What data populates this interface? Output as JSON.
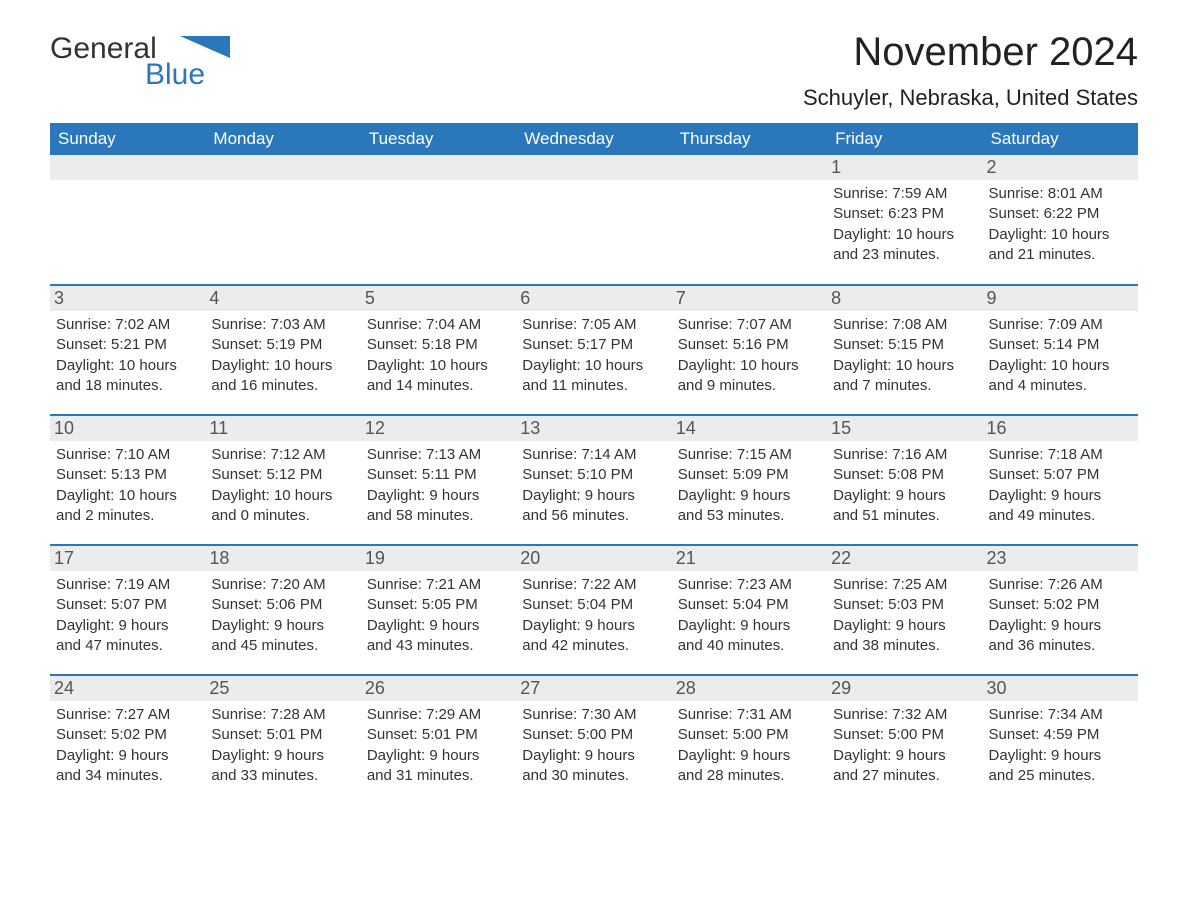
{
  "brand": {
    "part1": "General",
    "part2": "Blue",
    "color_dark": "#333333",
    "color_brand": "#2b77bb"
  },
  "title": "November 2024",
  "location": "Schuyler, Nebraska, United States",
  "colors": {
    "header_bg": "#2b77bb",
    "header_fg": "#ffffff",
    "daynum_bg": "#ececec",
    "text": "#333333",
    "row_border": "#2b77bb"
  },
  "fonts": {
    "title_size": 40,
    "location_size": 22,
    "dayhead_size": 17,
    "daynum_size": 18,
    "body_size": 15
  },
  "day_headers": [
    "Sunday",
    "Monday",
    "Tuesday",
    "Wednesday",
    "Thursday",
    "Friday",
    "Saturday"
  ],
  "weeks": [
    [
      null,
      null,
      null,
      null,
      null,
      {
        "n": "1",
        "sunrise": "Sunrise: 7:59 AM",
        "sunset": "Sunset: 6:23 PM",
        "daylight1": "Daylight: 10 hours",
        "daylight2": "and 23 minutes."
      },
      {
        "n": "2",
        "sunrise": "Sunrise: 8:01 AM",
        "sunset": "Sunset: 6:22 PM",
        "daylight1": "Daylight: 10 hours",
        "daylight2": "and 21 minutes."
      }
    ],
    [
      {
        "n": "3",
        "sunrise": "Sunrise: 7:02 AM",
        "sunset": "Sunset: 5:21 PM",
        "daylight1": "Daylight: 10 hours",
        "daylight2": "and 18 minutes."
      },
      {
        "n": "4",
        "sunrise": "Sunrise: 7:03 AM",
        "sunset": "Sunset: 5:19 PM",
        "daylight1": "Daylight: 10 hours",
        "daylight2": "and 16 minutes."
      },
      {
        "n": "5",
        "sunrise": "Sunrise: 7:04 AM",
        "sunset": "Sunset: 5:18 PM",
        "daylight1": "Daylight: 10 hours",
        "daylight2": "and 14 minutes."
      },
      {
        "n": "6",
        "sunrise": "Sunrise: 7:05 AM",
        "sunset": "Sunset: 5:17 PM",
        "daylight1": "Daylight: 10 hours",
        "daylight2": "and 11 minutes."
      },
      {
        "n": "7",
        "sunrise": "Sunrise: 7:07 AM",
        "sunset": "Sunset: 5:16 PM",
        "daylight1": "Daylight: 10 hours",
        "daylight2": "and 9 minutes."
      },
      {
        "n": "8",
        "sunrise": "Sunrise: 7:08 AM",
        "sunset": "Sunset: 5:15 PM",
        "daylight1": "Daylight: 10 hours",
        "daylight2": "and 7 minutes."
      },
      {
        "n": "9",
        "sunrise": "Sunrise: 7:09 AM",
        "sunset": "Sunset: 5:14 PM",
        "daylight1": "Daylight: 10 hours",
        "daylight2": "and 4 minutes."
      }
    ],
    [
      {
        "n": "10",
        "sunrise": "Sunrise: 7:10 AM",
        "sunset": "Sunset: 5:13 PM",
        "daylight1": "Daylight: 10 hours",
        "daylight2": "and 2 minutes."
      },
      {
        "n": "11",
        "sunrise": "Sunrise: 7:12 AM",
        "sunset": "Sunset: 5:12 PM",
        "daylight1": "Daylight: 10 hours",
        "daylight2": "and 0 minutes."
      },
      {
        "n": "12",
        "sunrise": "Sunrise: 7:13 AM",
        "sunset": "Sunset: 5:11 PM",
        "daylight1": "Daylight: 9 hours",
        "daylight2": "and 58 minutes."
      },
      {
        "n": "13",
        "sunrise": "Sunrise: 7:14 AM",
        "sunset": "Sunset: 5:10 PM",
        "daylight1": "Daylight: 9 hours",
        "daylight2": "and 56 minutes."
      },
      {
        "n": "14",
        "sunrise": "Sunrise: 7:15 AM",
        "sunset": "Sunset: 5:09 PM",
        "daylight1": "Daylight: 9 hours",
        "daylight2": "and 53 minutes."
      },
      {
        "n": "15",
        "sunrise": "Sunrise: 7:16 AM",
        "sunset": "Sunset: 5:08 PM",
        "daylight1": "Daylight: 9 hours",
        "daylight2": "and 51 minutes."
      },
      {
        "n": "16",
        "sunrise": "Sunrise: 7:18 AM",
        "sunset": "Sunset: 5:07 PM",
        "daylight1": "Daylight: 9 hours",
        "daylight2": "and 49 minutes."
      }
    ],
    [
      {
        "n": "17",
        "sunrise": "Sunrise: 7:19 AM",
        "sunset": "Sunset: 5:07 PM",
        "daylight1": "Daylight: 9 hours",
        "daylight2": "and 47 minutes."
      },
      {
        "n": "18",
        "sunrise": "Sunrise: 7:20 AM",
        "sunset": "Sunset: 5:06 PM",
        "daylight1": "Daylight: 9 hours",
        "daylight2": "and 45 minutes."
      },
      {
        "n": "19",
        "sunrise": "Sunrise: 7:21 AM",
        "sunset": "Sunset: 5:05 PM",
        "daylight1": "Daylight: 9 hours",
        "daylight2": "and 43 minutes."
      },
      {
        "n": "20",
        "sunrise": "Sunrise: 7:22 AM",
        "sunset": "Sunset: 5:04 PM",
        "daylight1": "Daylight: 9 hours",
        "daylight2": "and 42 minutes."
      },
      {
        "n": "21",
        "sunrise": "Sunrise: 7:23 AM",
        "sunset": "Sunset: 5:04 PM",
        "daylight1": "Daylight: 9 hours",
        "daylight2": "and 40 minutes."
      },
      {
        "n": "22",
        "sunrise": "Sunrise: 7:25 AM",
        "sunset": "Sunset: 5:03 PM",
        "daylight1": "Daylight: 9 hours",
        "daylight2": "and 38 minutes."
      },
      {
        "n": "23",
        "sunrise": "Sunrise: 7:26 AM",
        "sunset": "Sunset: 5:02 PM",
        "daylight1": "Daylight: 9 hours",
        "daylight2": "and 36 minutes."
      }
    ],
    [
      {
        "n": "24",
        "sunrise": "Sunrise: 7:27 AM",
        "sunset": "Sunset: 5:02 PM",
        "daylight1": "Daylight: 9 hours",
        "daylight2": "and 34 minutes."
      },
      {
        "n": "25",
        "sunrise": "Sunrise: 7:28 AM",
        "sunset": "Sunset: 5:01 PM",
        "daylight1": "Daylight: 9 hours",
        "daylight2": "and 33 minutes."
      },
      {
        "n": "26",
        "sunrise": "Sunrise: 7:29 AM",
        "sunset": "Sunset: 5:01 PM",
        "daylight1": "Daylight: 9 hours",
        "daylight2": "and 31 minutes."
      },
      {
        "n": "27",
        "sunrise": "Sunrise: 7:30 AM",
        "sunset": "Sunset: 5:00 PM",
        "daylight1": "Daylight: 9 hours",
        "daylight2": "and 30 minutes."
      },
      {
        "n": "28",
        "sunrise": "Sunrise: 7:31 AM",
        "sunset": "Sunset: 5:00 PM",
        "daylight1": "Daylight: 9 hours",
        "daylight2": "and 28 minutes."
      },
      {
        "n": "29",
        "sunrise": "Sunrise: 7:32 AM",
        "sunset": "Sunset: 5:00 PM",
        "daylight1": "Daylight: 9 hours",
        "daylight2": "and 27 minutes."
      },
      {
        "n": "30",
        "sunrise": "Sunrise: 7:34 AM",
        "sunset": "Sunset: 4:59 PM",
        "daylight1": "Daylight: 9 hours",
        "daylight2": "and 25 minutes."
      }
    ]
  ]
}
